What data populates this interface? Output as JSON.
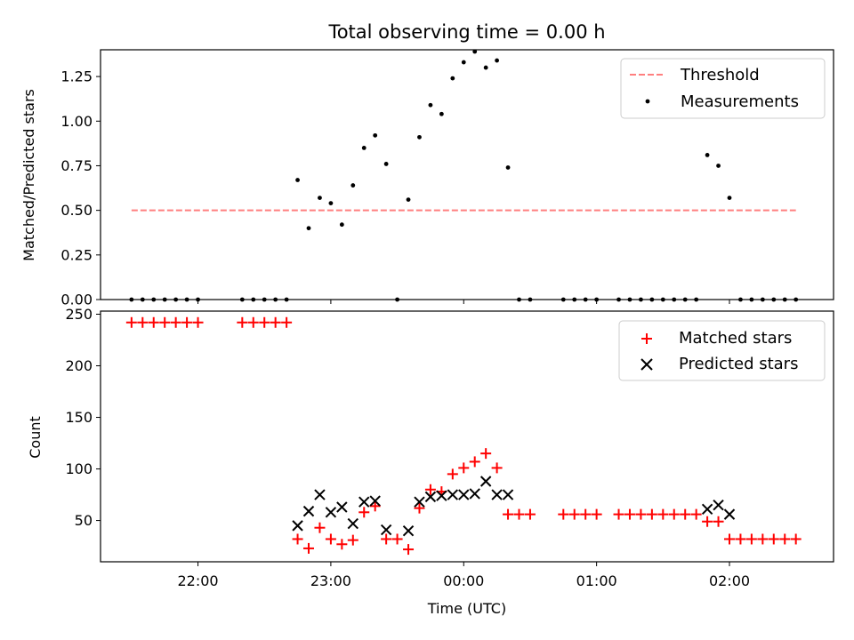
{
  "chart_data": [
    {
      "type": "scatter",
      "title": "Total observing time = 0.00 h",
      "xlabel": "",
      "ylabel": "Matched/Predicted stars",
      "ylim": [
        0,
        1.4
      ],
      "yticks": [
        0.0,
        0.25,
        0.5,
        0.75,
        1.0,
        1.25
      ],
      "ytick_labels": [
        "0.00",
        "0.25",
        "0.50",
        "0.75",
        "1.00",
        "1.25"
      ],
      "xlim": [
        "21:16",
        "02:47"
      ],
      "legend": "top-right",
      "grid": false,
      "series": [
        {
          "name": "Threshold",
          "kind": "line",
          "style": "dashed",
          "color": "#ff7f7f",
          "x": [
            "21:30",
            "02:30"
          ],
          "y": [
            0.5,
            0.5
          ]
        },
        {
          "name": "Measurements",
          "kind": "scatter",
          "marker": "dot",
          "color": "#000000",
          "points": [
            [
              "21:30",
              0.0
            ],
            [
              "21:35",
              0.0
            ],
            [
              "21:40",
              0.0
            ],
            [
              "21:45",
              0.0
            ],
            [
              "21:50",
              0.0
            ],
            [
              "21:55",
              0.0
            ],
            [
              "22:00",
              0.0
            ],
            [
              "22:20",
              0.0
            ],
            [
              "22:25",
              0.0
            ],
            [
              "22:30",
              0.0
            ],
            [
              "22:35",
              0.0
            ],
            [
              "22:40",
              0.0
            ],
            [
              "22:45",
              0.67
            ],
            [
              "22:50",
              0.4
            ],
            [
              "22:55",
              0.57
            ],
            [
              "23:00",
              0.54
            ],
            [
              "23:05",
              0.42
            ],
            [
              "23:10",
              0.64
            ],
            [
              "23:15",
              0.85
            ],
            [
              "23:20",
              0.92
            ],
            [
              "23:25",
              0.76
            ],
            [
              "23:30",
              0.0
            ],
            [
              "23:35",
              0.56
            ],
            [
              "23:40",
              0.91
            ],
            [
              "23:45",
              1.09
            ],
            [
              "23:50",
              1.04
            ],
            [
              "23:55",
              1.24
            ],
            [
              "00:00",
              1.33
            ],
            [
              "00:05",
              1.39
            ],
            [
              "00:10",
              1.3
            ],
            [
              "00:15",
              1.34
            ],
            [
              "00:20",
              0.74
            ],
            [
              "00:25",
              0.0
            ],
            [
              "00:30",
              0.0
            ],
            [
              "00:45",
              0.0
            ],
            [
              "00:50",
              0.0
            ],
            [
              "00:55",
              0.0
            ],
            [
              "01:00",
              0.0
            ],
            [
              "01:10",
              0.0
            ],
            [
              "01:15",
              0.0
            ],
            [
              "01:20",
              0.0
            ],
            [
              "01:25",
              0.0
            ],
            [
              "01:30",
              0.0
            ],
            [
              "01:35",
              0.0
            ],
            [
              "01:40",
              0.0
            ],
            [
              "01:45",
              0.0
            ],
            [
              "01:50",
              0.81
            ],
            [
              "01:55",
              0.75
            ],
            [
              "02:00",
              0.57
            ],
            [
              "02:05",
              0.0
            ],
            [
              "02:10",
              0.0
            ],
            [
              "02:15",
              0.0
            ],
            [
              "02:20",
              0.0
            ],
            [
              "02:25",
              0.0
            ],
            [
              "02:30",
              0.0
            ]
          ]
        }
      ]
    },
    {
      "type": "scatter",
      "title": "",
      "xlabel": "Time (UTC)",
      "ylabel": "Count",
      "ylim": [
        10,
        253
      ],
      "yticks": [
        50,
        100,
        150,
        200,
        250
      ],
      "ytick_labels": [
        "50",
        "100",
        "150",
        "200",
        "250"
      ],
      "xlim": [
        "21:16",
        "02:47"
      ],
      "xticks": [
        "22:00",
        "23:00",
        "00:00",
        "01:00",
        "02:00"
      ],
      "xtick_labels": [
        "22:00",
        "23:00",
        "00:00",
        "01:00",
        "02:00"
      ],
      "legend": "top-right",
      "grid": false,
      "series": [
        {
          "name": "Matched stars",
          "kind": "scatter",
          "marker": "plus",
          "color": "#ff0000",
          "points": [
            [
              "21:30",
              242
            ],
            [
              "21:35",
              242
            ],
            [
              "21:40",
              242
            ],
            [
              "21:45",
              242
            ],
            [
              "21:50",
              242
            ],
            [
              "21:55",
              242
            ],
            [
              "22:00",
              242
            ],
            [
              "22:20",
              242
            ],
            [
              "22:25",
              242
            ],
            [
              "22:30",
              242
            ],
            [
              "22:35",
              242
            ],
            [
              "22:40",
              242
            ],
            [
              "22:45",
              32
            ],
            [
              "22:50",
              23
            ],
            [
              "22:55",
              43
            ],
            [
              "23:00",
              32
            ],
            [
              "23:05",
              27
            ],
            [
              "23:10",
              31
            ],
            [
              "23:15",
              58
            ],
            [
              "23:20",
              64
            ],
            [
              "23:25",
              32
            ],
            [
              "23:30",
              32
            ],
            [
              "23:35",
              22
            ],
            [
              "23:40",
              62
            ],
            [
              "23:45",
              80
            ],
            [
              "23:50",
              78
            ],
            [
              "23:55",
              95
            ],
            [
              "00:00",
              101
            ],
            [
              "00:05",
              107
            ],
            [
              "00:10",
              115
            ],
            [
              "00:15",
              101
            ],
            [
              "00:20",
              56
            ],
            [
              "00:25",
              56
            ],
            [
              "00:30",
              56
            ],
            [
              "00:45",
              56
            ],
            [
              "00:50",
              56
            ],
            [
              "00:55",
              56
            ],
            [
              "01:00",
              56
            ],
            [
              "01:10",
              56
            ],
            [
              "01:15",
              56
            ],
            [
              "01:20",
              56
            ],
            [
              "01:25",
              56
            ],
            [
              "01:30",
              56
            ],
            [
              "01:35",
              56
            ],
            [
              "01:40",
              56
            ],
            [
              "01:45",
              56
            ],
            [
              "01:50",
              49
            ],
            [
              "01:55",
              49
            ],
            [
              "02:00",
              32
            ],
            [
              "02:05",
              32
            ],
            [
              "02:10",
              32
            ],
            [
              "02:15",
              32
            ],
            [
              "02:20",
              32
            ],
            [
              "02:25",
              32
            ],
            [
              "02:30",
              32
            ]
          ]
        },
        {
          "name": "Predicted stars",
          "kind": "scatter",
          "marker": "x",
          "color": "#000000",
          "points": [
            [
              "22:45",
              45
            ],
            [
              "22:50",
              59
            ],
            [
              "22:55",
              75
            ],
            [
              "23:00",
              58
            ],
            [
              "23:05",
              63
            ],
            [
              "23:10",
              47
            ],
            [
              "23:15",
              68
            ],
            [
              "23:20",
              69
            ],
            [
              "23:25",
              41
            ],
            [
              "23:35",
              40
            ],
            [
              "23:40",
              68
            ],
            [
              "23:45",
              73
            ],
            [
              "23:50",
              74
            ],
            [
              "23:55",
              75
            ],
            [
              "00:00",
              75
            ],
            [
              "00:05",
              76
            ],
            [
              "00:10",
              88
            ],
            [
              "00:15",
              75
            ],
            [
              "00:20",
              75
            ],
            [
              "01:50",
              61
            ],
            [
              "01:55",
              65
            ],
            [
              "02:00",
              56
            ]
          ]
        }
      ]
    }
  ]
}
